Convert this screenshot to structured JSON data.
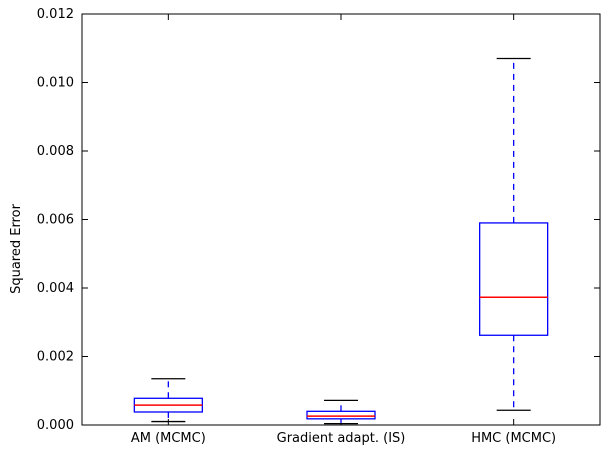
{
  "chart_data": {
    "type": "boxplot",
    "ylabel": "Squared Error",
    "ylim": [
      0,
      0.012
    ],
    "yticks": [
      0.0,
      0.002,
      0.004,
      0.006,
      0.008,
      0.01,
      0.012
    ],
    "ytick_labels": [
      "0.000",
      "0.002",
      "0.004",
      "0.006",
      "0.008",
      "0.010",
      "0.012"
    ],
    "categories": [
      "AM (MCMC)",
      "Gradient adapt. (IS)",
      "HMC (MCMC)"
    ],
    "boxes": [
      {
        "category": "AM (MCMC)",
        "whisker_low": 0.0001,
        "q1": 0.00038,
        "median": 0.00058,
        "q3": 0.00078,
        "whisker_high": 0.00135
      },
      {
        "category": "Gradient adapt. (IS)",
        "whisker_low": 4e-05,
        "q1": 0.00018,
        "median": 0.00026,
        "q3": 0.0004,
        "whisker_high": 0.00072
      },
      {
        "category": "HMC (MCMC)",
        "whisker_low": 0.00043,
        "q1": 0.00262,
        "median": 0.00373,
        "q3": 0.0059,
        "whisker_high": 0.0107
      }
    ],
    "colors": {
      "box": "#0000ff",
      "median": "#ff0000",
      "cap": "#000000"
    },
    "grid": false
  }
}
